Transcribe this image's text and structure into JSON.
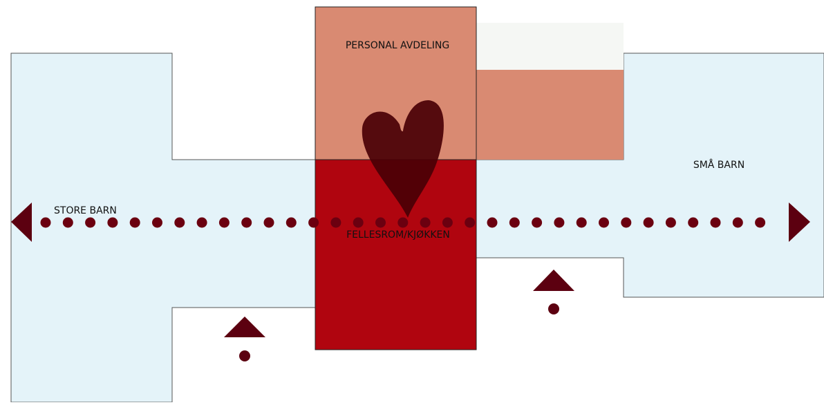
{
  "labels": {
    "staff": "PERSONAL AVDELING",
    "older": "STORE BARN",
    "younger": "SMÅ BARN",
    "common": "FELLESROM/KJØKKEN"
  }
}
